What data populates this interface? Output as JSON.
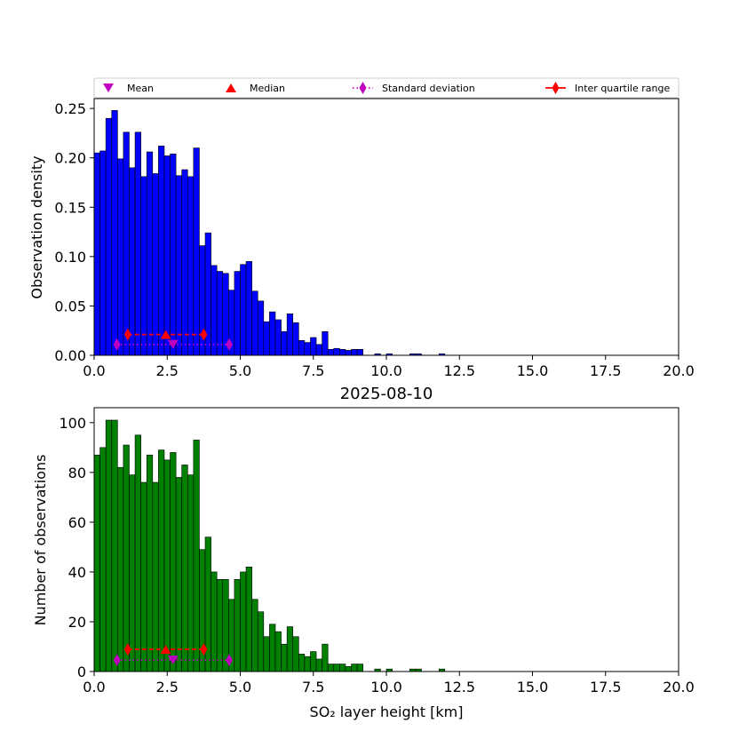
{
  "chart_data": [
    {
      "type": "bar",
      "title": "",
      "xlabel": "",
      "ylabel": "Observation density",
      "xlim": [
        0,
        20
      ],
      "ylim": [
        0,
        0.26
      ],
      "bin_width": 0.2,
      "bar_color": "#0000ff",
      "x_ticks": [
        0,
        2.5,
        5,
        7.5,
        10,
        12.5,
        15,
        17.5,
        20
      ],
      "x_tick_labels": [
        "0.0",
        "2.5",
        "5.0",
        "7.5",
        "10.0",
        "12.5",
        "15.0",
        "17.5",
        "20.0"
      ],
      "y_ticks": [
        0,
        0.05,
        0.1,
        0.15,
        0.2,
        0.25
      ],
      "y_tick_labels": [
        "0.00",
        "0.05",
        "0.10",
        "0.15",
        "0.20",
        "0.25"
      ],
      "values": [
        0.205,
        0.207,
        0.24,
        0.248,
        0.199,
        0.226,
        0.19,
        0.226,
        0.181,
        0.206,
        0.184,
        0.212,
        0.202,
        0.204,
        0.182,
        0.188,
        0.181,
        0.21,
        0.111,
        0.124,
        0.091,
        0.085,
        0.083,
        0.066,
        0.085,
        0.092,
        0.095,
        0.065,
        0.055,
        0.034,
        0.044,
        0.036,
        0.024,
        0.042,
        0.033,
        0.015,
        0.013,
        0.018,
        0.011,
        0.024,
        0.006,
        0.007,
        0.006,
        0.005,
        0.006,
        0.006,
        0,
        0,
        0.0015,
        0,
        0.0015,
        0,
        0,
        0,
        0.0015,
        0.0015,
        0,
        0,
        0,
        0.0015
      ],
      "stats": {
        "mean": 2.7,
        "median": 2.45,
        "std_range": [
          0.78,
          4.62
        ],
        "iqr_range": [
          1.15,
          3.75
        ],
        "mean_y": 0.011,
        "median_y": 0.021,
        "std_y": 0.011,
        "iqr_y": 0.021
      }
    },
    {
      "type": "bar",
      "title": "2025-08-10",
      "xlabel": "SO₂ layer height [km]",
      "ylabel": "Number of observations",
      "xlim": [
        0,
        20
      ],
      "ylim": [
        0,
        106
      ],
      "bin_width": 0.2,
      "bar_color": "#008000",
      "x_ticks": [
        0,
        2.5,
        5,
        7.5,
        10,
        12.5,
        15,
        17.5,
        20
      ],
      "x_tick_labels": [
        "0.0",
        "2.5",
        "5.0",
        "7.5",
        "10.0",
        "12.5",
        "15.0",
        "17.5",
        "20.0"
      ],
      "y_ticks": [
        0,
        20,
        40,
        60,
        80,
        100
      ],
      "y_tick_labels": [
        "0",
        "20",
        "40",
        "60",
        "80",
        "100"
      ],
      "values": [
        87,
        90,
        101,
        101,
        82,
        91,
        79,
        95,
        76,
        87,
        76,
        89,
        85,
        88,
        78,
        83,
        79,
        93,
        49,
        54,
        40,
        37,
        37,
        29,
        37,
        40,
        42,
        29,
        24,
        14,
        19,
        16,
        11,
        18,
        14,
        7,
        6,
        8,
        5,
        11,
        3,
        3,
        3,
        2,
        3,
        3,
        0,
        0,
        1,
        0,
        1,
        0,
        0,
        0,
        1,
        1,
        0,
        0,
        0,
        1
      ],
      "stats": {
        "mean": 2.7,
        "median": 2.45,
        "std_range": [
          0.78,
          4.62
        ],
        "iqr_range": [
          1.15,
          3.75
        ],
        "mean_y": 4.6,
        "median_y": 8.9,
        "std_y": 4.6,
        "iqr_y": 8.9
      }
    }
  ],
  "legend": {
    "mean": "Mean",
    "median": "Median",
    "std": "Standard deviation",
    "iqr": "Inter quartile range"
  },
  "colors": {
    "mean": "#bf00bf",
    "median": "#ff0000",
    "std": "#bf00bf",
    "iqr": "#ff0000"
  }
}
